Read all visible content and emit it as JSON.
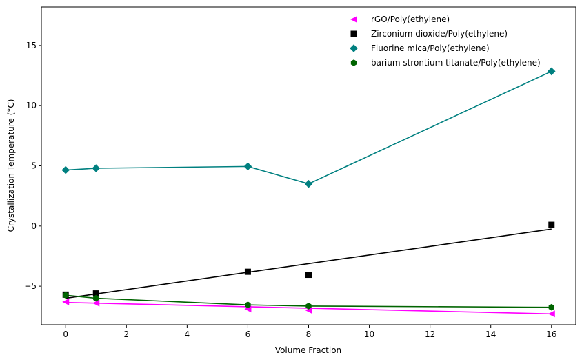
{
  "chart_data": {
    "type": "scatter",
    "title": "",
    "xlabel": "Volume Fraction",
    "ylabel": "Crystallization Temperature (°C)",
    "xlim": [
      -0.8,
      16.8
    ],
    "ylim": [
      -8.2,
      18.2
    ],
    "xticks": [
      0,
      2,
      4,
      6,
      8,
      10,
      12,
      14,
      16
    ],
    "yticks": [
      -5,
      0,
      5,
      10,
      15
    ],
    "grid": false,
    "legend_position": "top-right",
    "series": [
      {
        "name": "rGO/Poly(ethylene)",
        "marker": "triangle-left",
        "color": "#ff00ff",
        "points": [
          [
            0,
            -6.3
          ],
          [
            1,
            -6.4
          ],
          [
            6,
            -6.9
          ],
          [
            8,
            -7.0
          ],
          [
            16,
            -7.3
          ]
        ],
        "fit_line": [
          [
            0,
            -6.35
          ],
          [
            16,
            -7.3
          ]
        ],
        "fit_type": "linear"
      },
      {
        "name": "Zirconium dioxide/Poly(ethylene)",
        "marker": "square",
        "color": "#000000",
        "points": [
          [
            0,
            -5.7
          ],
          [
            1,
            -5.6
          ],
          [
            6,
            -3.8
          ],
          [
            8,
            -4.05
          ],
          [
            16,
            0.1
          ]
        ],
        "fit_line": [
          [
            0,
            -6.0
          ],
          [
            16,
            -0.25
          ]
        ],
        "fit_type": "linear"
      },
      {
        "name": "Fluorine mica/Poly(ethylene)",
        "marker": "diamond",
        "color": "#008080",
        "points": [
          [
            0,
            4.65
          ],
          [
            1,
            4.8
          ],
          [
            6,
            4.95
          ],
          [
            8,
            3.5
          ],
          [
            16,
            12.85
          ]
        ],
        "fit_line": [
          [
            0,
            4.65
          ],
          [
            1,
            4.8
          ],
          [
            6,
            4.95
          ],
          [
            8,
            3.5
          ],
          [
            16,
            12.85
          ]
        ],
        "fit_type": "connect"
      },
      {
        "name": "barium strontium titanate/Poly(ethylene)",
        "marker": "hexagon",
        "color": "#006400",
        "points": [
          [
            0,
            -5.75
          ],
          [
            1,
            -6.0
          ],
          [
            6,
            -6.55
          ],
          [
            8,
            -6.65
          ],
          [
            16,
            -6.75
          ]
        ],
        "fit_line": [
          [
            0,
            -5.75
          ],
          [
            1,
            -6.0
          ],
          [
            6,
            -6.55
          ],
          [
            8,
            -6.65
          ],
          [
            16,
            -6.75
          ]
        ],
        "fit_type": "smooth"
      }
    ]
  }
}
